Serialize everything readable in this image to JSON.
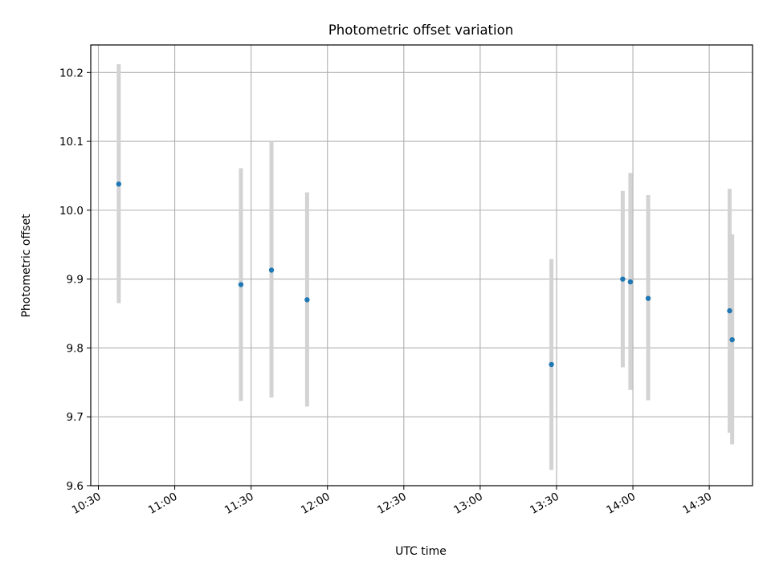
{
  "chart_data": {
    "type": "scatter",
    "title": "Photometric offset variation",
    "xlabel": "UTC time",
    "ylabel": "Photometric offset",
    "x_axis_type": "time",
    "xlim": [
      "10:27",
      "14:47"
    ],
    "ylim": [
      9.6,
      10.24
    ],
    "grid": true,
    "x_ticks": [
      "10:30",
      "11:00",
      "11:30",
      "12:00",
      "12:30",
      "13:00",
      "13:30",
      "14:00",
      "14:30"
    ],
    "y_ticks": [
      "9.6",
      "9.7",
      "9.8",
      "9.9",
      "10.0",
      "10.1",
      "10.2"
    ],
    "point_color": "#1f77b4",
    "errorbar_color": "#d3d3d3",
    "points": [
      {
        "x": "10:38",
        "y": 10.038,
        "yerr_low": 9.865,
        "yerr_high": 10.212
      },
      {
        "x": "11:26",
        "y": 9.892,
        "yerr_low": 9.723,
        "yerr_high": 10.061
      },
      {
        "x": "11:38",
        "y": 9.913,
        "yerr_low": 9.728,
        "yerr_high": 10.099
      },
      {
        "x": "11:52",
        "y": 9.87,
        "yerr_low": 9.715,
        "yerr_high": 10.026
      },
      {
        "x": "13:28",
        "y": 9.776,
        "yerr_low": 9.623,
        "yerr_high": 9.929
      },
      {
        "x": "13:56",
        "y": 9.9,
        "yerr_low": 9.772,
        "yerr_high": 10.028
      },
      {
        "x": "13:59",
        "y": 9.896,
        "yerr_low": 9.739,
        "yerr_high": 10.054
      },
      {
        "x": "14:06",
        "y": 9.872,
        "yerr_low": 9.724,
        "yerr_high": 10.022
      },
      {
        "x": "14:38",
        "y": 9.854,
        "yerr_low": 9.677,
        "yerr_high": 10.031
      },
      {
        "x": "14:39",
        "y": 9.812,
        "yerr_low": 9.66,
        "yerr_high": 9.965
      }
    ]
  }
}
